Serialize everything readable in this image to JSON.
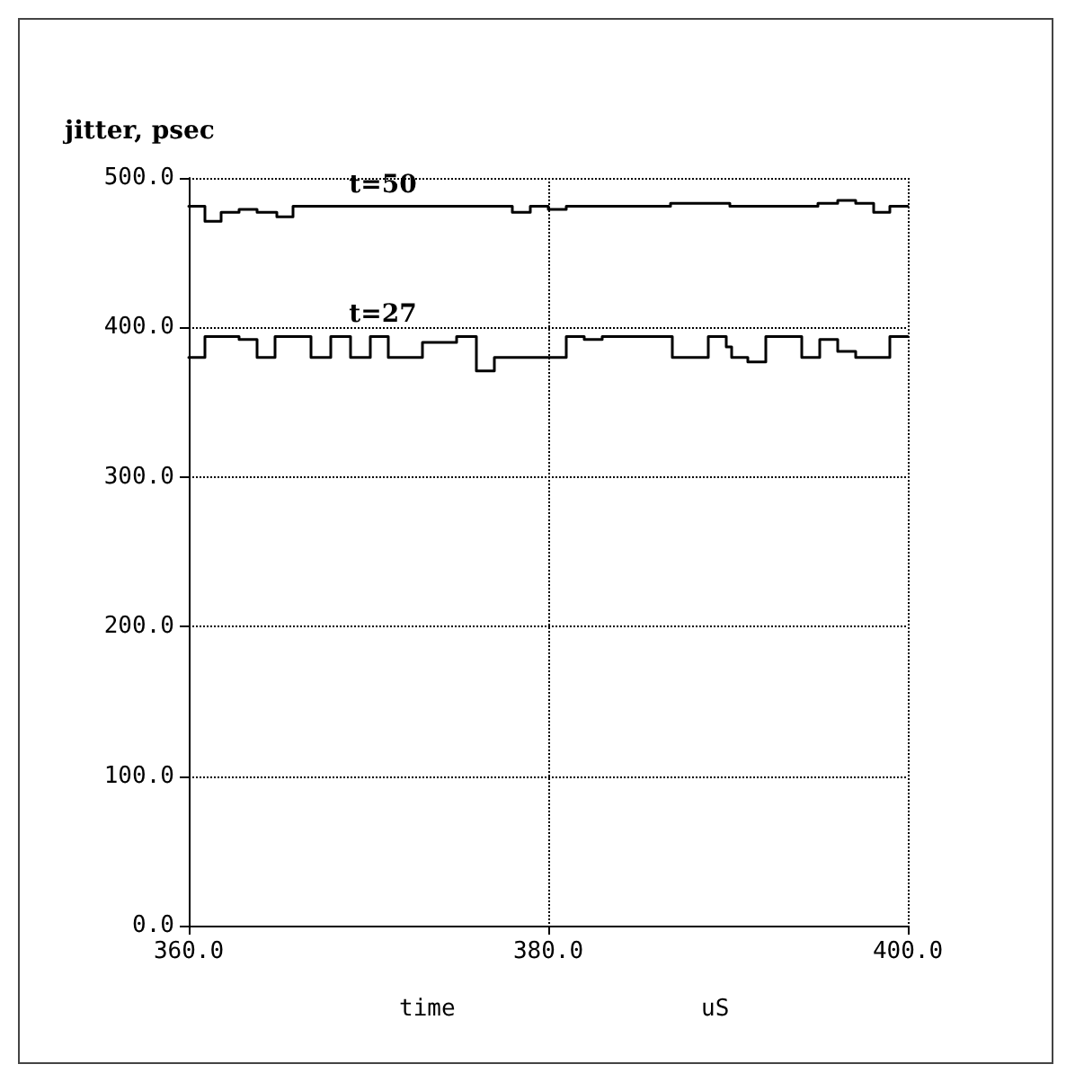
{
  "chart_data": {
    "type": "step",
    "ylabel": "jitter, psec",
    "xlabel": "time",
    "annotations": [
      "uS"
    ],
    "xlim": [
      360,
      400
    ],
    "xticks": [
      {
        "value": 360,
        "label": "360.0"
      },
      {
        "value": 380,
        "label": "380.0"
      },
      {
        "value": 400,
        "label": "400.0"
      }
    ],
    "ylim": [
      0,
      500
    ],
    "yticks": [
      {
        "value": 0,
        "label": "0.0"
      },
      {
        "value": 100,
        "label": "100.0"
      },
      {
        "value": 200,
        "label": "200.0"
      },
      {
        "value": 300,
        "label": "300.0"
      },
      {
        "value": 400,
        "label": "400.0"
      },
      {
        "value": 500,
        "label": "500.0"
      }
    ],
    "grid": true,
    "legend": false,
    "marker": "none",
    "line_style": "solid",
    "series": [
      {
        "name": "t=50",
        "color": "#000000",
        "x": [
          360.0,
          360.9,
          361.8,
          362.8,
          363.8,
          364.9,
          365.8,
          378.0,
          379.0,
          380.0,
          381.0,
          386.8,
          390.1,
          395.0,
          396.1,
          397.1,
          398.1,
          399.0,
          400.0
        ],
        "values": [
          481,
          471,
          477,
          479,
          477,
          474,
          481,
          477,
          481,
          479,
          481,
          483,
          481,
          483,
          485,
          483,
          477,
          481,
          481
        ]
      },
      {
        "name": "t=27",
        "color": "#000000",
        "x": [
          360.0,
          360.9,
          362.8,
          363.8,
          364.8,
          366.8,
          367.9,
          369.0,
          370.1,
          371.1,
          373.0,
          374.9,
          376.0,
          377.0,
          381.0,
          382.0,
          383.0,
          386.9,
          388.9,
          389.9,
          390.2,
          391.1,
          392.1,
          394.1,
          395.1,
          396.1,
          397.1,
          399.0,
          400.0
        ],
        "values": [
          380,
          394,
          392,
          380,
          394,
          380,
          394,
          380,
          394,
          380,
          390,
          394,
          371,
          380,
          394,
          392,
          394,
          380,
          394,
          387,
          380,
          377,
          394,
          380,
          392,
          384,
          380,
          394,
          394
        ]
      }
    ]
  }
}
